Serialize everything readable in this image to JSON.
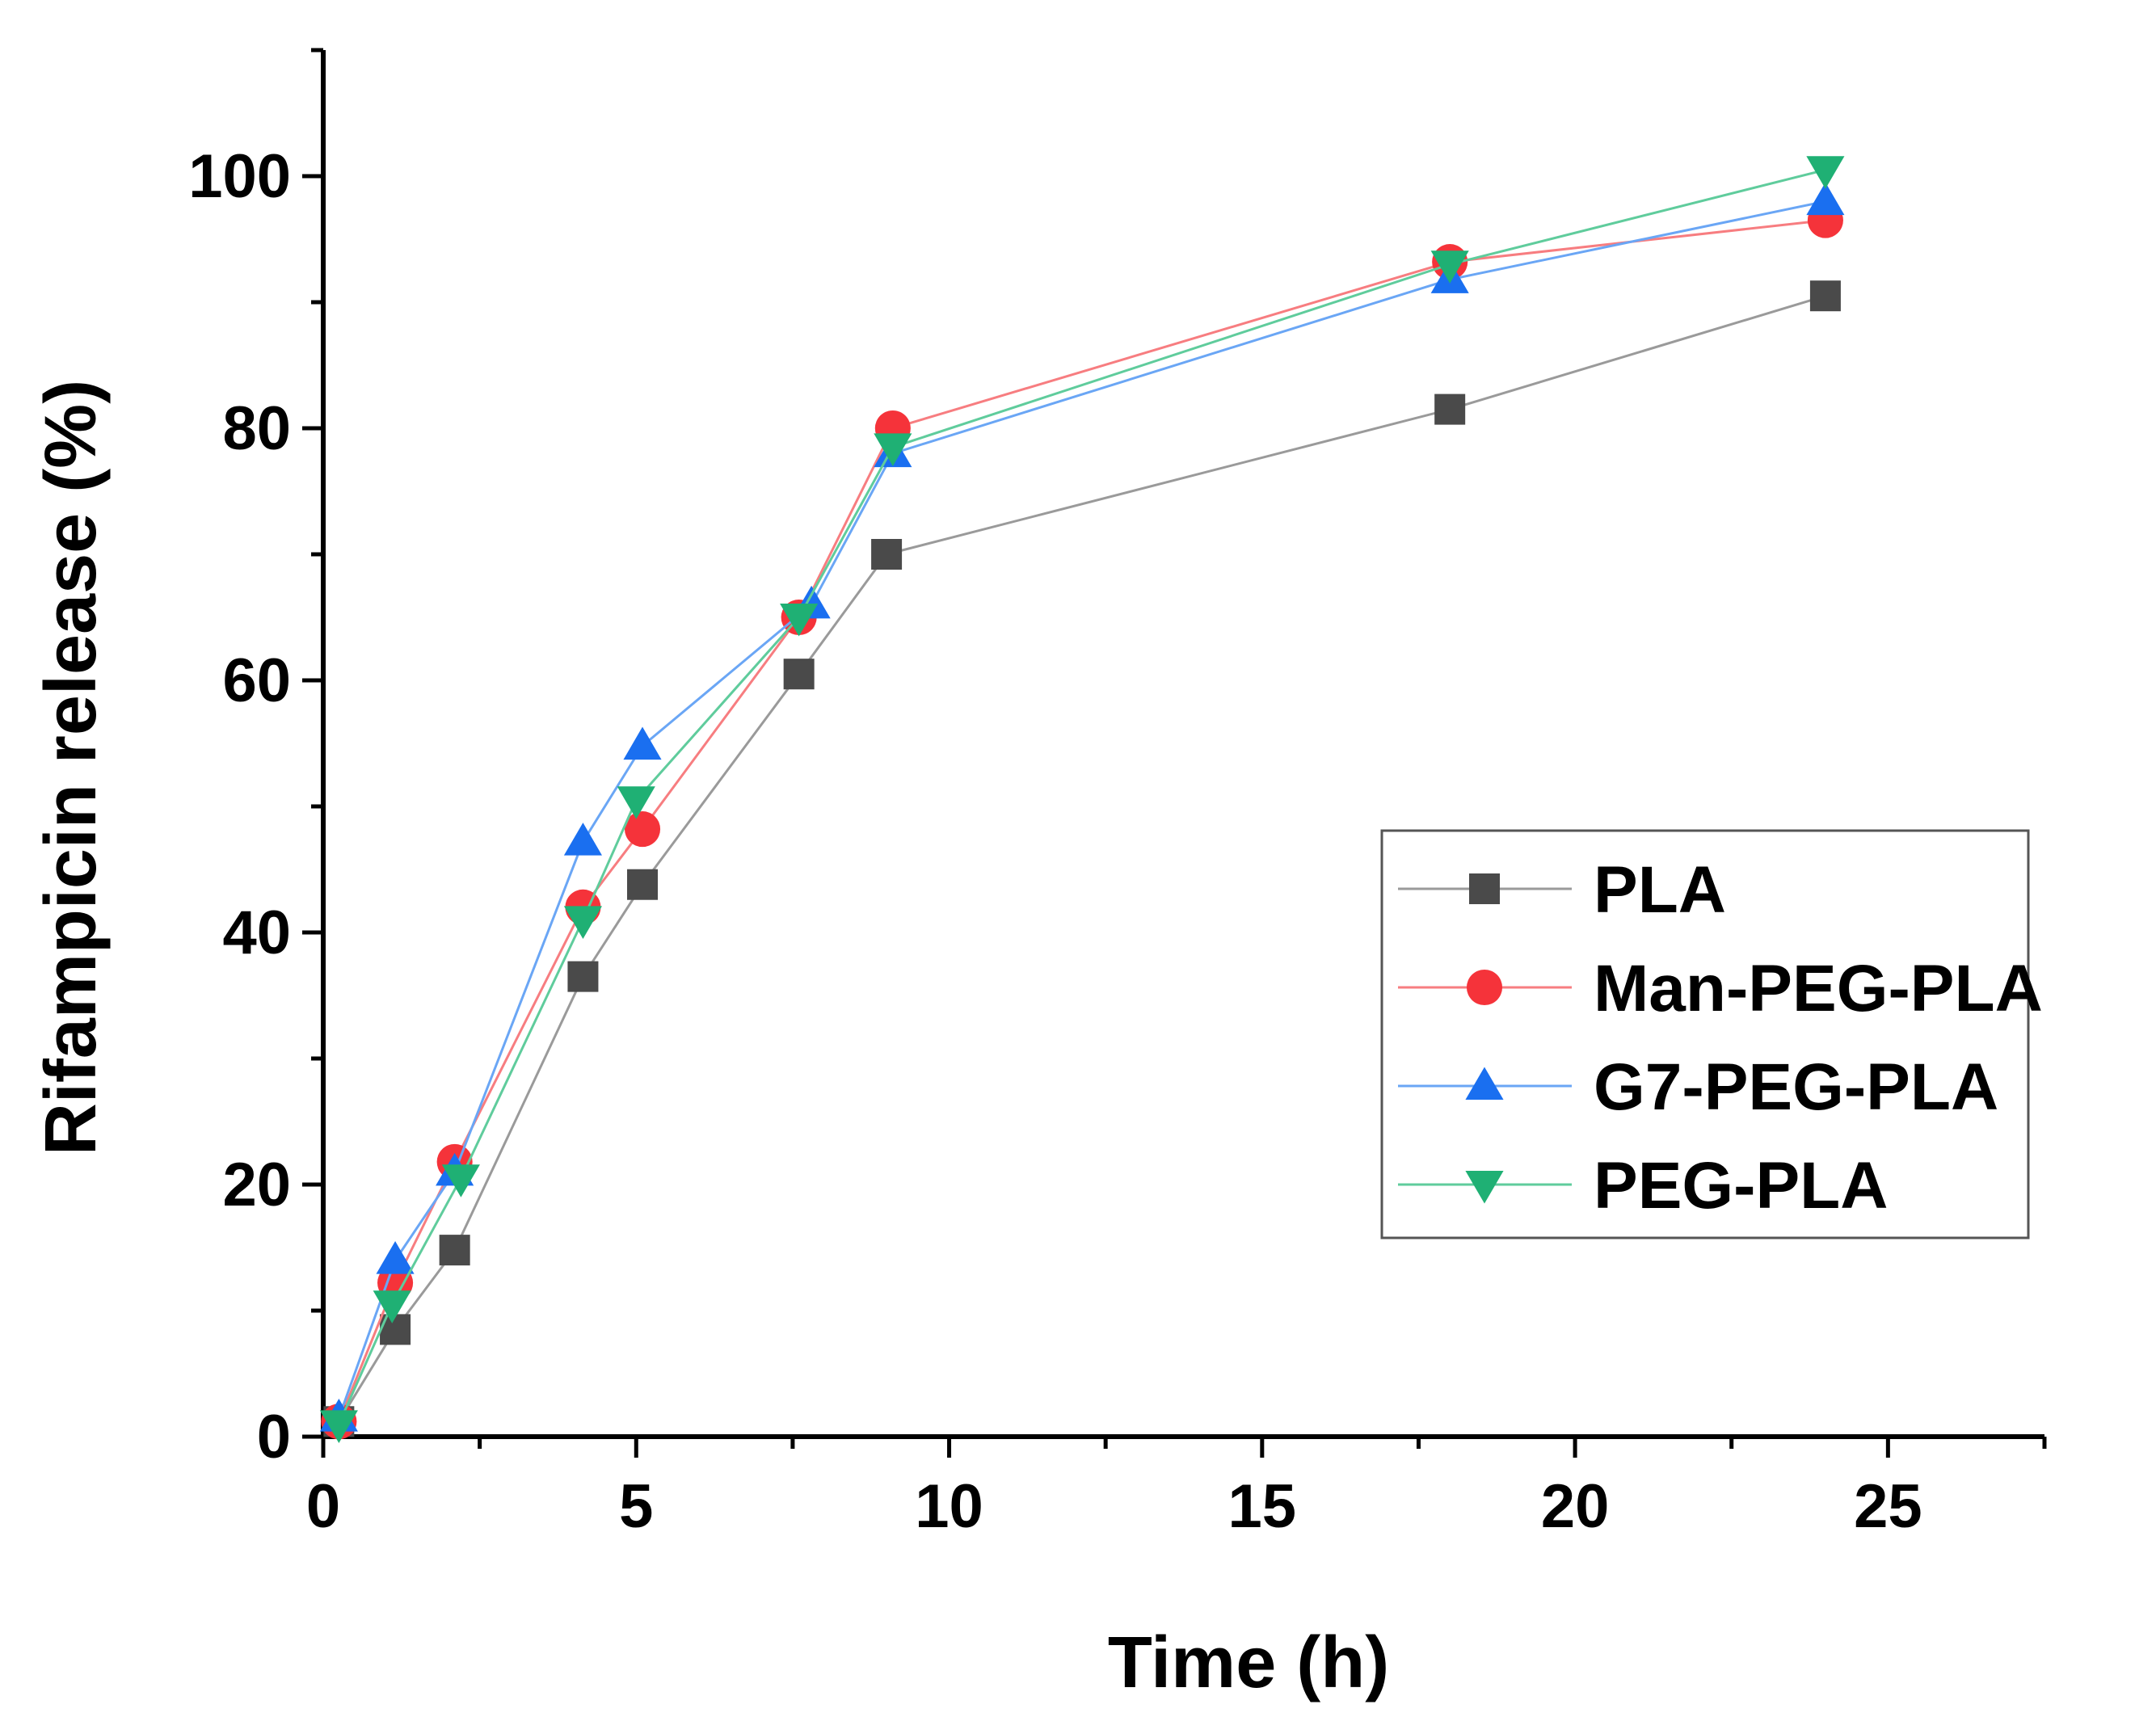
{
  "chart_data": {
    "type": "line",
    "title": "",
    "xlabel": "Time (h)",
    "ylabel": "Rifampicin release (%)",
    "xlim": [
      0,
      27.5
    ],
    "ylim": [
      0,
      110
    ],
    "xticks": [
      0,
      5,
      10,
      15,
      20,
      25
    ],
    "yticks": [
      0,
      20,
      40,
      60,
      80,
      100
    ],
    "x_tick_labels": [
      "0",
      "5",
      "10",
      "15",
      "20",
      "25"
    ],
    "y_tick_labels": [
      "0",
      "20",
      "40",
      "60",
      "80",
      "100"
    ],
    "grid": false,
    "legend_position": "right",
    "series": [
      {
        "name": "PLA",
        "marker": "square",
        "color": "#4a4a4a",
        "line_color": "#9a9a9a",
        "x": [
          0.25,
          1.15,
          2.1,
          4.15,
          5.1,
          7.6,
          9.0,
          18.0,
          24.0
        ],
        "values": [
          1.2,
          8.5,
          14.8,
          36.5,
          43.8,
          60.5,
          70.0,
          81.5,
          90.5
        ]
      },
      {
        "name": "Man-PEG-PLA",
        "marker": "circle",
        "color": "#f5333a",
        "line_color": "#f77d80",
        "x": [
          0.25,
          1.15,
          2.1,
          4.15,
          5.1,
          7.6,
          9.1,
          18.0,
          24.0
        ],
        "values": [
          1.2,
          12.2,
          21.8,
          42.0,
          48.2,
          65.0,
          80.0,
          93.2,
          96.5
        ]
      },
      {
        "name": "G7-PEG-PLA",
        "marker": "triangle-up",
        "color": "#1a6ff0",
        "line_color": "#6aa6f5",
        "x": [
          0.25,
          1.15,
          2.1,
          4.15,
          5.1,
          7.8,
          9.1,
          18.0,
          24.0
        ],
        "values": [
          1.5,
          14.0,
          21.0,
          47.2,
          54.8,
          66.0,
          78.0,
          91.8,
          98.0
        ]
      },
      {
        "name": "PEG-PLA",
        "marker": "triangle-down",
        "color": "#1fb074",
        "line_color": "#5fcc9c",
        "x": [
          0.25,
          1.1,
          2.2,
          4.15,
          5.0,
          7.6,
          9.1,
          18.0,
          24.0
        ],
        "values": [
          1.0,
          10.5,
          20.5,
          41.0,
          50.5,
          65.0,
          78.5,
          93.0,
          100.5
        ]
      }
    ]
  }
}
